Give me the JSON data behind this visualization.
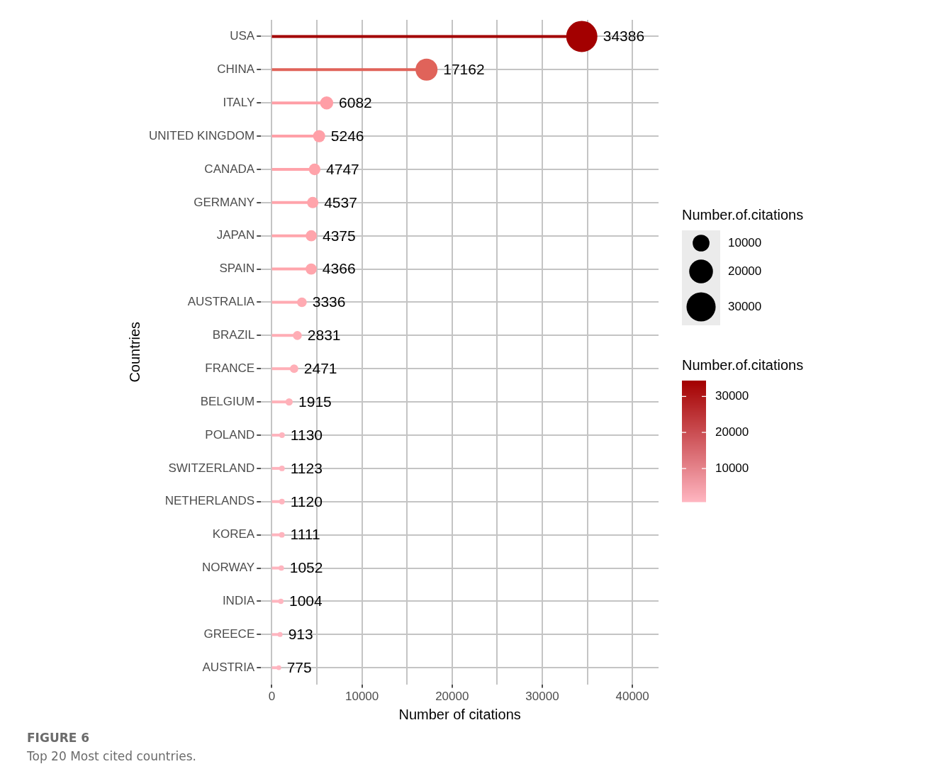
{
  "chart_data": {
    "type": "lollipop",
    "orientation": "horizontal",
    "xlabel": "Number of citations",
    "ylabel": "Countries",
    "categories": [
      "USA",
      "CHINA",
      "ITALY",
      "UNITED KINGDOM",
      "CANADA",
      "GERMANY",
      "JAPAN",
      "SPAIN",
      "AUSTRALIA",
      "BRAZIL",
      "FRANCE",
      "BELGIUM",
      "POLAND",
      "SWITZERLAND",
      "NETHERLANDS",
      "KOREA",
      "NORWAY",
      "INDIA",
      "GREECE",
      "AUSTRIA"
    ],
    "values": [
      34386,
      17162,
      6082,
      5246,
      4747,
      4537,
      4375,
      4366,
      3336,
      2831,
      2471,
      1915,
      1130,
      1123,
      1120,
      1111,
      1052,
      1004,
      913,
      775
    ],
    "sizes": [
      34386,
      17162,
      6082,
      5246,
      4747,
      4537,
      4375,
      4366,
      3336,
      2831,
      2471,
      1915,
      1130,
      1123,
      1120,
      1111,
      1052,
      1004,
      913,
      775
    ],
    "colors": [
      "#a30000",
      "#e0635a",
      "#ff9ea6",
      "#ffa0a8",
      "#ffa3aa",
      "#ffa4ab",
      "#ffa5ac",
      "#ffa5ac",
      "#ffaab2",
      "#ffadb5",
      "#ffafb7",
      "#ffb1b9",
      "#ffb4be",
      "#ffb4be",
      "#ffb4be",
      "#ffb4be",
      "#ffb5bf",
      "#ffb5bf",
      "#ffb5c0",
      "#ffb6c1"
    ],
    "data_labels": true,
    "marker": "circle",
    "grid": true,
    "xlim": [
      -1200,
      42900
    ],
    "xticks": [
      0,
      {
        "value": 5000,
        "label": null
      },
      10000,
      {
        "value": 15000,
        "label": null
      },
      20000,
      {
        "value": 25000,
        "label": null
      },
      30000,
      {
        "value": 35000,
        "label": null
      },
      40000
    ],
    "legend_title": "Number.of.citations",
    "size_legend": [
      10000,
      20000,
      30000
    ],
    "clabel": "Number.of.citations",
    "clim": [
      775,
      34386
    ],
    "cticks": [
      10000,
      20000,
      30000
    ],
    "annotations": [
      "FIGURE 6",
      "Top 20 Most cited countries."
    ]
  }
}
